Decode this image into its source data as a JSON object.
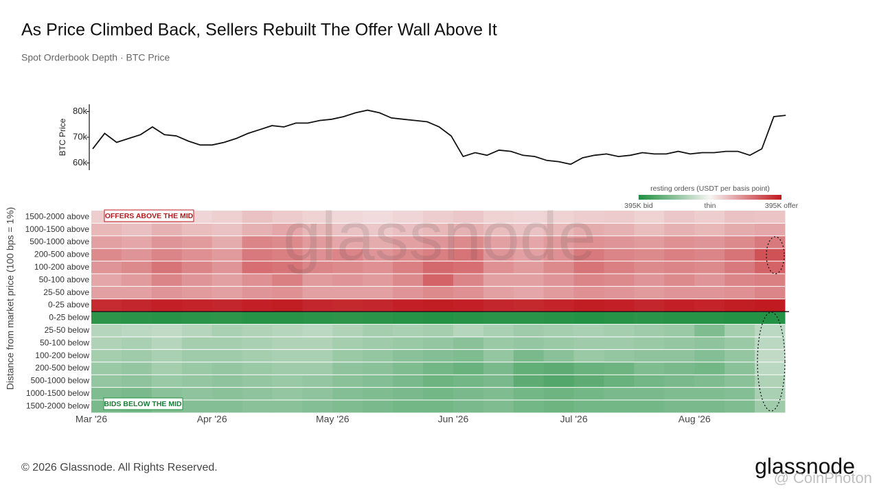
{
  "title": "As Price Climbed Back, Sellers Rebuilt The Offer Wall Above It",
  "subtitle": "Spot Orderbook Depth · BTC Price",
  "footer": "© 2026 Glassnode. All Rights Reserved.",
  "logo": "glassnode",
  "watermark": "glassnode",
  "source_watermark": "@ CoinPhoton",
  "chart_data": [
    {
      "type": "line",
      "ylabel": "BTC Price",
      "color": "#111111",
      "ylim": [
        58000,
        82000
      ],
      "yticks": [
        {
          "value": 60000,
          "label": "60k"
        },
        {
          "value": 70000,
          "label": "70k"
        },
        {
          "value": 80000,
          "label": "80k"
        }
      ],
      "values": [
        65500,
        71500,
        68000,
        69500,
        71000,
        74000,
        71000,
        70500,
        68500,
        67000,
        67000,
        68000,
        69500,
        71500,
        73000,
        74500,
        74000,
        75500,
        75500,
        76500,
        77000,
        78000,
        79500,
        80500,
        79500,
        77500,
        77000,
        76500,
        76000,
        74000,
        70500,
        62500,
        64000,
        63000,
        65000,
        64500,
        63000,
        62500,
        61000,
        60500,
        59500,
        62000,
        63000,
        63500,
        62500,
        63000,
        64000,
        63500,
        63500,
        64500,
        63500,
        64000,
        64000,
        64500,
        64500,
        63000,
        65500,
        78000,
        78500
      ]
    },
    {
      "type": "heatmap",
      "ylabel": "Distance from market price (100 bps = 1%)",
      "categories": [
        "Mar '26",
        null,
        null,
        null,
        "Apr '26",
        null,
        null,
        null,
        "May '26",
        null,
        null,
        null,
        "Jun '26",
        null,
        null,
        null,
        "Jul '26",
        null,
        null,
        null,
        "Aug '26",
        null,
        null
      ],
      "rows": [
        "1500-2000 above",
        "1000-1500 above",
        "500-1000 above",
        "200-500 above",
        "100-200 above",
        "50-100 above",
        "25-50 above",
        "0-25 above",
        "0-25 below",
        "25-50 below",
        "50-100 below",
        "100-200 below",
        "200-500 below",
        "500-1000 below",
        "1000-1500 below",
        "1500-2000 below"
      ],
      "values": [
        [
          70,
          60,
          80,
          55,
          65,
          90,
          75,
          60,
          50,
          45,
          55,
          70,
          80,
          60,
          55,
          60,
          70,
          75,
          60,
          80,
          70,
          90,
          85
        ],
        [
          110,
          95,
          120,
          100,
          90,
          120,
          140,
          110,
          90,
          80,
          95,
          110,
          120,
          100,
          90,
          110,
          130,
          120,
          100,
          120,
          110,
          130,
          140
        ],
        [
          150,
          140,
          170,
          160,
          130,
          200,
          190,
          160,
          140,
          130,
          150,
          170,
          190,
          150,
          140,
          160,
          180,
          170,
          160,
          180,
          170,
          190,
          220
        ],
        [
          190,
          170,
          200,
          180,
          160,
          220,
          210,
          180,
          200,
          170,
          190,
          210,
          230,
          170,
          150,
          180,
          220,
          200,
          190,
          210,
          200,
          230,
          290
        ],
        [
          170,
          190,
          230,
          200,
          170,
          240,
          230,
          200,
          190,
          180,
          210,
          250,
          240,
          180,
          160,
          190,
          230,
          210,
          190,
          200,
          190,
          220,
          260
        ],
        [
          140,
          160,
          200,
          170,
          150,
          180,
          210,
          160,
          170,
          160,
          190,
          260,
          200,
          150,
          150,
          170,
          200,
          190,
          170,
          190,
          170,
          200,
          210
        ],
        [
          150,
          150,
          170,
          160,
          150,
          170,
          180,
          150,
          150,
          150,
          170,
          190,
          180,
          150,
          140,
          160,
          180,
          170,
          160,
          170,
          170,
          180,
          200
        ],
        [
          360,
          370,
          380,
          375,
          370,
          380,
          385,
          370,
          365,
          370,
          380,
          385,
          380,
          370,
          365,
          375,
          385,
          380,
          370,
          380,
          375,
          385,
          390
        ],
        [
          -370,
          -375,
          -380,
          -375,
          -370,
          -380,
          -380,
          -375,
          -370,
          -375,
          -380,
          -385,
          -380,
          -375,
          -375,
          -380,
          -385,
          -380,
          -375,
          -380,
          -380,
          -385,
          -385
        ],
        [
          -120,
          -110,
          -100,
          -120,
          -140,
          -130,
          -120,
          -110,
          -130,
          -150,
          -140,
          -150,
          -120,
          -140,
          -160,
          -150,
          -140,
          -150,
          -160,
          -170,
          -220,
          -150,
          -110
        ],
        [
          -130,
          -140,
          -120,
          -150,
          -150,
          -140,
          -130,
          -130,
          -150,
          -160,
          -170,
          -180,
          -200,
          -170,
          -180,
          -170,
          -160,
          -160,
          -170,
          -180,
          -190,
          -170,
          -110
        ],
        [
          -150,
          -160,
          -140,
          -160,
          -160,
          -150,
          -140,
          -140,
          -170,
          -180,
          -200,
          -210,
          -220,
          -180,
          -230,
          -200,
          -170,
          -180,
          -190,
          -190,
          -210,
          -180,
          -100
        ],
        [
          -170,
          -180,
          -150,
          -170,
          -180,
          -170,
          -160,
          -160,
          -190,
          -200,
          -220,
          -240,
          -260,
          -230,
          -270,
          -280,
          -260,
          -250,
          -220,
          -230,
          -240,
          -200,
          -110
        ],
        [
          -180,
          -190,
          -170,
          -180,
          -190,
          -180,
          -170,
          -180,
          -200,
          -210,
          -230,
          -250,
          -240,
          -230,
          -280,
          -300,
          -280,
          -260,
          -240,
          -230,
          -220,
          -200,
          -130
        ],
        [
          -220,
          -230,
          -200,
          -190,
          -200,
          -190,
          -180,
          -190,
          -210,
          -220,
          -230,
          -240,
          -230,
          -220,
          -240,
          -250,
          -240,
          -230,
          -230,
          -220,
          -220,
          -210,
          -140
        ],
        [
          -230,
          -240,
          -220,
          -210,
          -210,
          -200,
          -200,
          -210,
          -220,
          -230,
          -240,
          -240,
          -230,
          -220,
          -240,
          -250,
          -240,
          -240,
          -240,
          -230,
          -230,
          -220,
          -160
        ]
      ],
      "colorbar": {
        "title": "resting orders (USDT per basis point)",
        "clim": [
          -395,
          395
        ],
        "colors": [
          "#1f8f3f",
          "#f7f4f4",
          "#c0181e"
        ],
        "ticks": [
          {
            "value": -395,
            "label": "395K bid"
          },
          {
            "value": 0,
            "label": "thin"
          },
          {
            "value": 395,
            "label": "395K offer"
          }
        ]
      },
      "annotations": [
        "OFFERS ABOVE THE MID",
        "BIDS BELOW THE MID"
      ]
    }
  ]
}
